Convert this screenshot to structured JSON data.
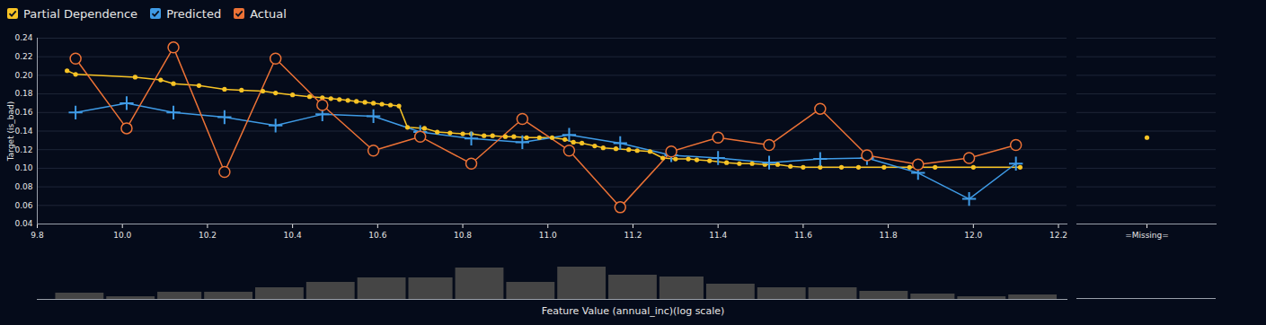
{
  "chart_data": [
    {
      "type": "line",
      "ylabel": "Target (is_bad)",
      "legend": "top-left",
      "grid": true,
      "xlim": [
        9.8,
        12.22
      ],
      "xticks": [
        9.8,
        {
          "value": 10,
          "label": "10.0"
        },
        10.2,
        10.4,
        10.6,
        10.8,
        {
          "value": 11,
          "label": "11.0"
        },
        11.2,
        11.4,
        11.6,
        11.8,
        {
          "value": 12,
          "label": "12.0"
        },
        12.2
      ],
      "ylim": [
        0.04,
        0.24
      ],
      "yticks": [
        0.04,
        0.06,
        0.08,
        {
          "value": 0.1,
          "label": "0.10"
        },
        0.12,
        0.14,
        0.16,
        0.18,
        {
          "value": 0.2,
          "label": "0.20"
        },
        0.22,
        0.24
      ],
      "series": [
        {
          "name": "Partial Dependence",
          "color": "#f7c325",
          "marker": "dot",
          "x": [
            9.87,
            9.89,
            10.03,
            10.09,
            10.12,
            10.18,
            10.24,
            10.28,
            10.33,
            10.36,
            10.4,
            10.44,
            10.47,
            10.49,
            10.51,
            10.53,
            10.55,
            10.57,
            10.59,
            10.61,
            10.63,
            10.65,
            10.67,
            10.71,
            10.74,
            10.77,
            10.8,
            10.82,
            10.85,
            10.87,
            10.9,
            10.92,
            10.95,
            10.98,
            11.01,
            11.04,
            11.06,
            11.08,
            11.11,
            11.13,
            11.16,
            11.19,
            11.21,
            11.24,
            11.27,
            11.3,
            11.33,
            11.35,
            11.38,
            11.42,
            11.45,
            11.48,
            11.51,
            11.54,
            11.57,
            11.6,
            11.64,
            11.69,
            11.73,
            11.79,
            11.85,
            11.91,
            12.0,
            12.11
          ],
          "values": [
            0.205,
            0.201,
            0.198,
            0.195,
            0.191,
            0.189,
            0.185,
            0.184,
            0.183,
            0.181,
            0.179,
            0.177,
            0.176,
            0.175,
            0.174,
            0.173,
            0.172,
            0.171,
            0.17,
            0.169,
            0.168,
            0.167,
            0.144,
            0.143,
            0.139,
            0.138,
            0.137,
            0.137,
            0.135,
            0.135,
            0.134,
            0.134,
            0.133,
            0.133,
            0.133,
            0.131,
            0.128,
            0.127,
            0.124,
            0.122,
            0.121,
            0.12,
            0.119,
            0.118,
            0.111,
            0.11,
            0.11,
            0.109,
            0.108,
            0.106,
            0.105,
            0.105,
            0.104,
            0.104,
            0.102,
            0.101,
            0.101,
            0.101,
            0.101,
            0.101,
            0.101,
            0.101,
            0.101,
            0.101
          ]
        },
        {
          "name": "Predicted",
          "color": "#3f9be6",
          "marker": "plus",
          "x": [
            9.89,
            10.01,
            10.12,
            10.24,
            10.36,
            10.47,
            10.59,
            10.7,
            10.82,
            10.94,
            11.05,
            11.17,
            11.29,
            11.4,
            11.52,
            11.64,
            11.75,
            11.87,
            11.99,
            12.1
          ],
          "values": [
            0.16,
            0.17,
            0.16,
            0.155,
            0.146,
            0.158,
            0.156,
            0.139,
            0.132,
            0.128,
            0.136,
            0.127,
            0.114,
            0.111,
            0.106,
            0.11,
            0.111,
            0.095,
            0.067,
            0.105
          ]
        },
        {
          "name": "Actual",
          "color": "#ec7236",
          "marker": "circle",
          "x": [
            9.89,
            10.01,
            10.12,
            10.24,
            10.36,
            10.47,
            10.59,
            10.7,
            10.82,
            10.94,
            11.05,
            11.17,
            11.29,
            11.4,
            11.52,
            11.64,
            11.75,
            11.87,
            11.99,
            12.1
          ],
          "values": [
            0.218,
            0.143,
            0.23,
            0.096,
            0.218,
            0.168,
            0.119,
            0.134,
            0.105,
            0.153,
            0.119,
            0.058,
            0.118,
            0.133,
            0.125,
            0.164,
            0.114,
            0.104,
            0.111,
            0.125
          ]
        }
      ]
    },
    {
      "type": "scatter",
      "tick_labels": "x",
      "grid": true,
      "categories": [
        "=Missing="
      ],
      "ylim": [
        0.04,
        0.24
      ],
      "yticks": [
        0.04,
        0.06,
        0.08,
        0.1,
        0.12,
        0.14,
        0.16,
        0.18,
        0.2,
        0.22,
        0.24
      ],
      "series": [
        {
          "name": "Partial Dependence",
          "color": "#f7c325",
          "marker": "dot",
          "values": [
            0.133
          ]
        }
      ]
    },
    {
      "type": "histogram",
      "tick_labels": false,
      "xlabel": "Feature Value (annual_inc)(log scale)",
      "color": "#454545",
      "xlim": [
        9.8,
        12.22
      ],
      "bins": [
        9.84,
        9.96,
        10.08,
        10.19,
        10.31,
        10.43,
        10.55,
        10.67,
        10.78,
        10.9,
        11.02,
        11.14,
        11.26,
        11.37,
        11.49,
        11.61,
        11.73,
        11.85,
        11.96,
        12.08,
        12.2
      ],
      "counts": [
        7,
        3,
        8,
        8,
        13,
        19,
        24,
        24,
        35,
        19,
        36,
        27,
        25,
        17,
        13,
        13,
        9,
        6,
        3,
        5
      ]
    }
  ]
}
